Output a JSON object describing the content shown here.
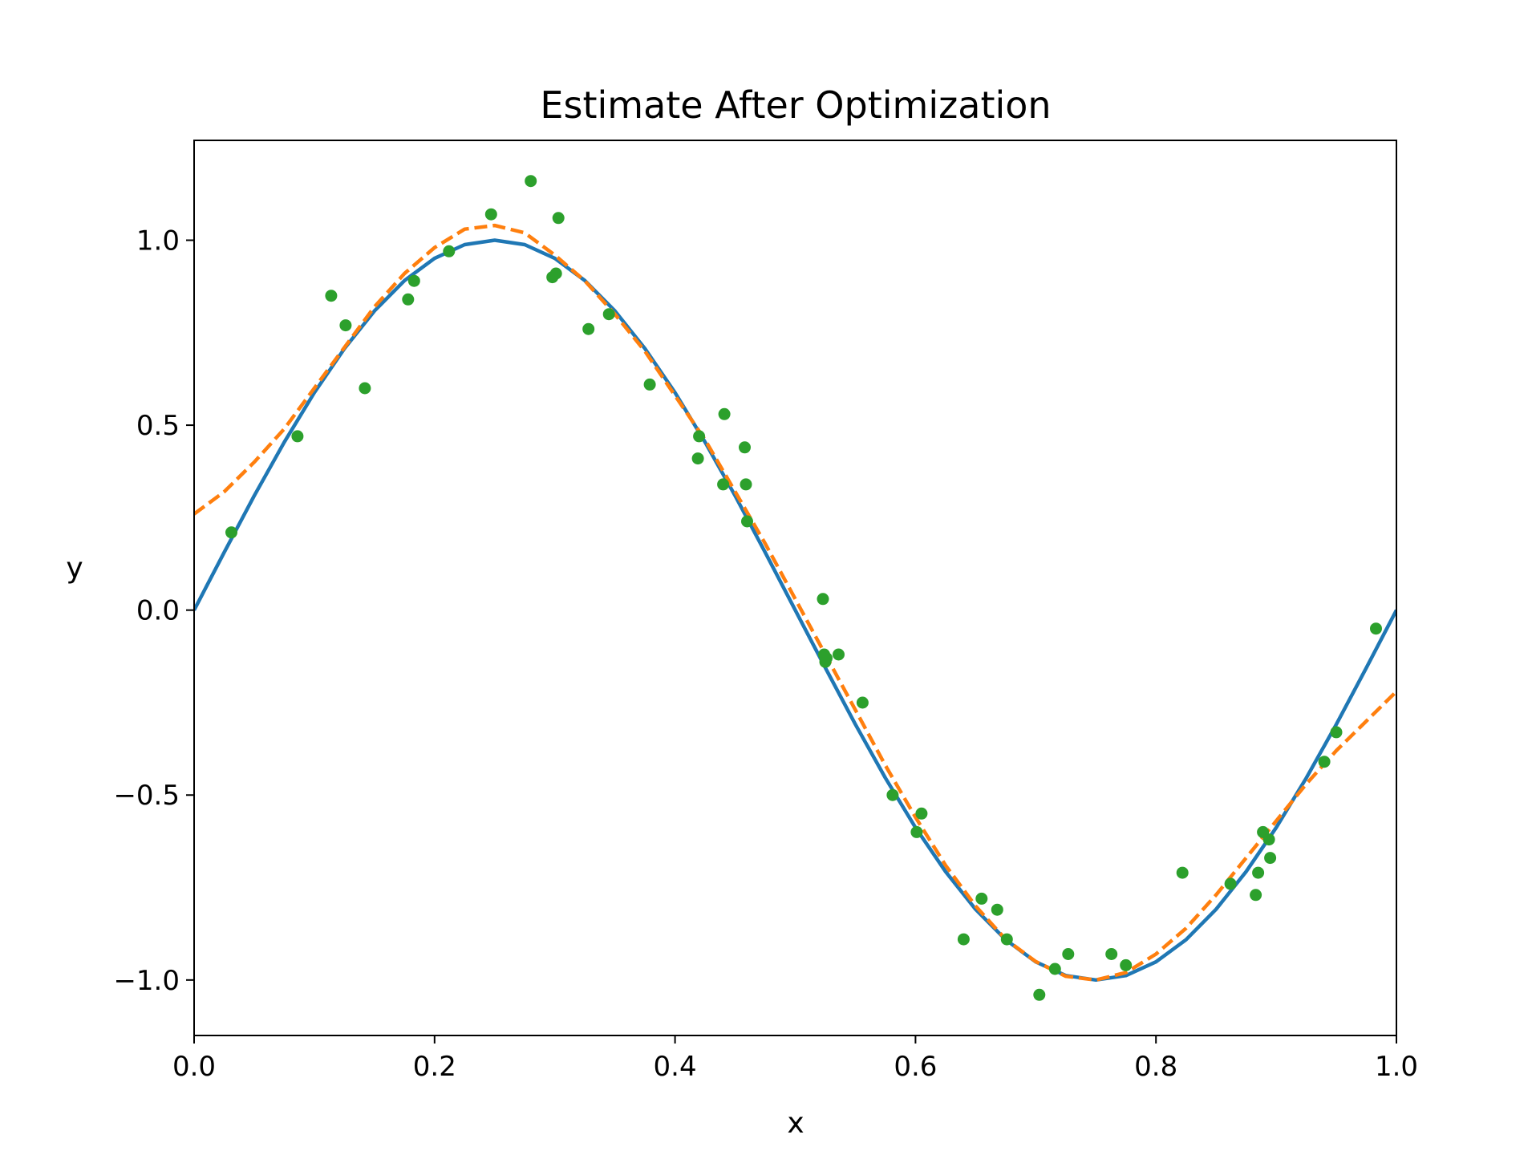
{
  "chart_data": {
    "type": "line",
    "title": "Estimate After Optimization",
    "xlabel": "x",
    "ylabel": "y",
    "xlim": [
      0.0,
      1.0
    ],
    "ylim": [
      -1.15,
      1.27
    ],
    "xticks": [
      0.0,
      0.2,
      0.4,
      0.6,
      0.8,
      1.0
    ],
    "xtick_labels": [
      "0.0",
      "0.2",
      "0.4",
      "0.6",
      "0.8",
      "1.0"
    ],
    "yticks": [
      -1.0,
      -0.5,
      0.0,
      0.5,
      1.0
    ],
    "ytick_labels": [
      "−1.0",
      "−0.5",
      "0.0",
      "0.5",
      "1.0"
    ],
    "grid": false,
    "legend": "none",
    "series": [
      {
        "kind": "line",
        "style": "solid",
        "color": "#1f77b4",
        "x": [
          0.0,
          0.025,
          0.05,
          0.075,
          0.1,
          0.125,
          0.15,
          0.175,
          0.2,
          0.225,
          0.25,
          0.275,
          0.3,
          0.325,
          0.35,
          0.375,
          0.4,
          0.425,
          0.45,
          0.475,
          0.5,
          0.525,
          0.55,
          0.575,
          0.6,
          0.625,
          0.65,
          0.675,
          0.7,
          0.725,
          0.75,
          0.775,
          0.8,
          0.825,
          0.85,
          0.875,
          0.9,
          0.925,
          0.95,
          0.975,
          1.0
        ],
        "y": [
          0.0,
          0.156,
          0.309,
          0.454,
          0.588,
          0.707,
          0.809,
          0.891,
          0.951,
          0.988,
          1.0,
          0.988,
          0.951,
          0.891,
          0.809,
          0.707,
          0.588,
          0.454,
          0.309,
          0.156,
          0.0,
          -0.156,
          -0.309,
          -0.454,
          -0.588,
          -0.707,
          -0.809,
          -0.891,
          -0.951,
          -0.988,
          -1.0,
          -0.988,
          -0.951,
          -0.891,
          -0.809,
          -0.707,
          -0.588,
          -0.454,
          -0.309,
          -0.156,
          0.0
        ]
      },
      {
        "kind": "line",
        "style": "dashed",
        "color": "#ff7f0e",
        "x": [
          0.0,
          0.025,
          0.05,
          0.075,
          0.1,
          0.125,
          0.15,
          0.175,
          0.2,
          0.225,
          0.25,
          0.275,
          0.3,
          0.325,
          0.35,
          0.375,
          0.4,
          0.425,
          0.45,
          0.475,
          0.5,
          0.525,
          0.55,
          0.575,
          0.6,
          0.625,
          0.65,
          0.675,
          0.7,
          0.725,
          0.75,
          0.775,
          0.8,
          0.825,
          0.85,
          0.875,
          0.9,
          0.925,
          0.95,
          0.975,
          1.0
        ],
        "y": [
          0.26,
          0.32,
          0.4,
          0.49,
          0.6,
          0.71,
          0.82,
          0.91,
          0.98,
          1.03,
          1.04,
          1.02,
          0.96,
          0.89,
          0.8,
          0.7,
          0.58,
          0.46,
          0.32,
          0.18,
          0.03,
          -0.12,
          -0.27,
          -0.42,
          -0.56,
          -0.69,
          -0.8,
          -0.89,
          -0.95,
          -0.99,
          -1.0,
          -0.98,
          -0.93,
          -0.86,
          -0.77,
          -0.67,
          -0.57,
          -0.47,
          -0.38,
          -0.3,
          -0.22
        ]
      },
      {
        "kind": "scatter",
        "color": "#2ca02c",
        "x": [
          0.031,
          0.086,
          0.114,
          0.126,
          0.142,
          0.178,
          0.183,
          0.212,
          0.247,
          0.28,
          0.298,
          0.301,
          0.303,
          0.328,
          0.345,
          0.379,
          0.419,
          0.42,
          0.441,
          0.44,
          0.458,
          0.459,
          0.46,
          0.523,
          0.524,
          0.525,
          0.526,
          0.536,
          0.556,
          0.581,
          0.601,
          0.605,
          0.64,
          0.655,
          0.668,
          0.676,
          0.703,
          0.716,
          0.727,
          0.763,
          0.775,
          0.822,
          0.862,
          0.883,
          0.885,
          0.889,
          0.894,
          0.895,
          0.94,
          0.95,
          0.983
        ],
        "y": [
          0.21,
          0.47,
          0.85,
          0.77,
          0.6,
          0.84,
          0.89,
          0.97,
          1.07,
          1.16,
          0.9,
          0.91,
          1.06,
          0.76,
          0.8,
          0.61,
          0.41,
          0.47,
          0.53,
          0.34,
          0.44,
          0.34,
          0.24,
          0.03,
          -0.12,
          -0.14,
          -0.13,
          -0.12,
          -0.25,
          -0.5,
          -0.6,
          -0.55,
          -0.89,
          -0.78,
          -0.81,
          -0.89,
          -1.04,
          -0.97,
          -0.93,
          -0.93,
          -0.96,
          -0.71,
          -0.74,
          -0.77,
          -0.71,
          -0.6,
          -0.62,
          -0.67,
          -0.41,
          -0.33,
          -0.05
        ]
      }
    ]
  }
}
